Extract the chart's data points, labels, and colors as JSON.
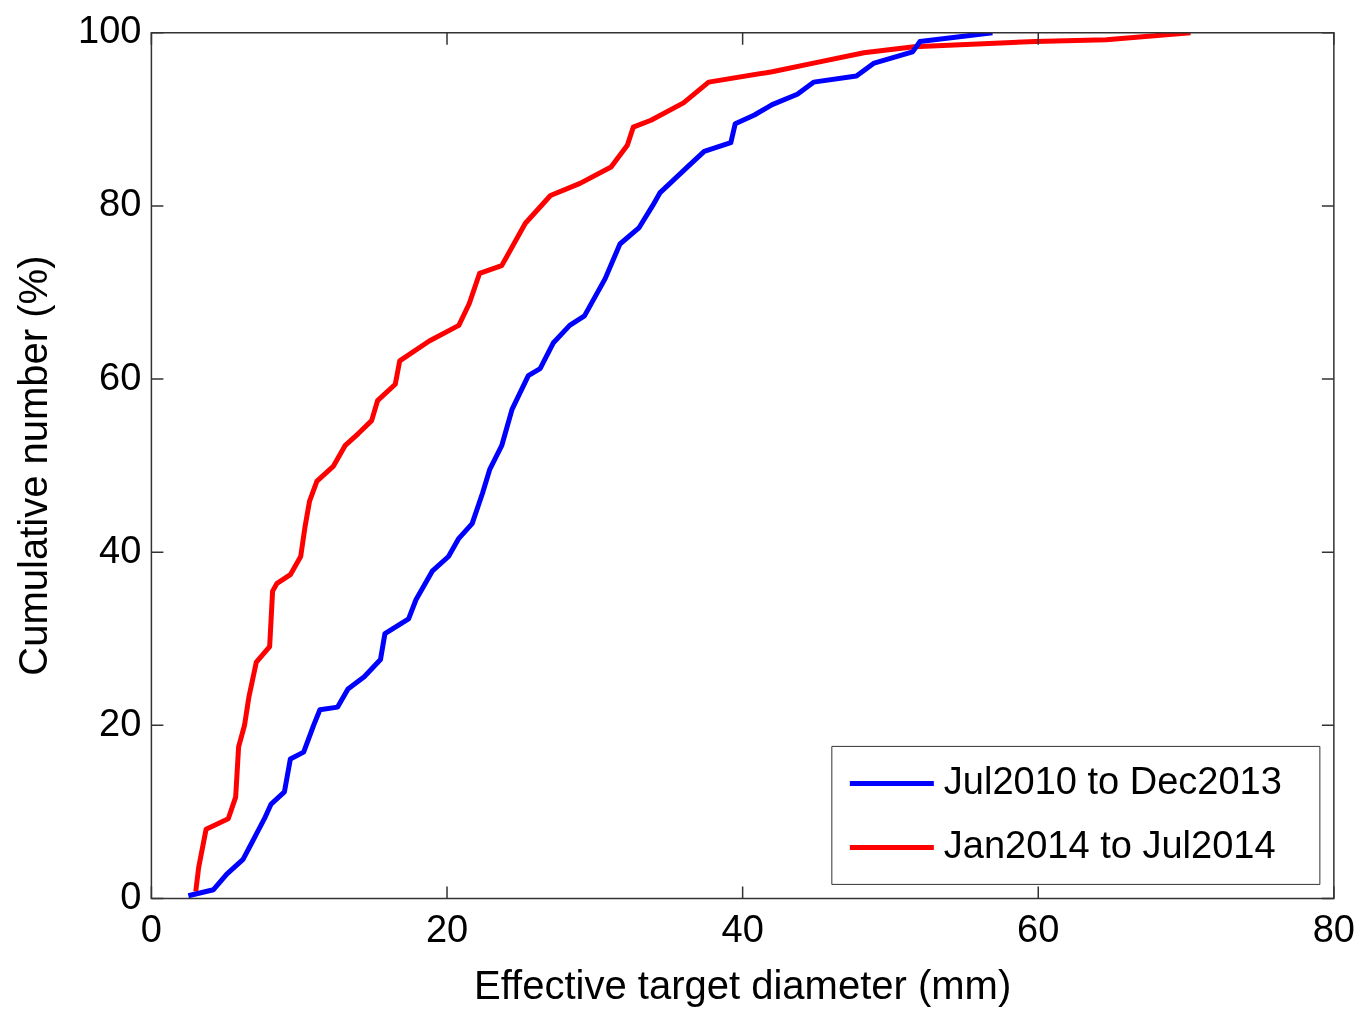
{
  "chart_data": {
    "type": "line",
    "xlabel": "Effective target diameter (mm)",
    "ylabel": "Cumulative number (%)",
    "xlim": [
      0,
      80
    ],
    "xticks": [
      0,
      20,
      40,
      60,
      80
    ],
    "ylim": [
      0,
      100
    ],
    "yticks": [
      0,
      20,
      40,
      60,
      80,
      100
    ],
    "grid": false,
    "legend": "bottom right",
    "marker": "none",
    "line_style": "solid",
    "series": [
      {
        "name": "Jul2010 to Dec2013",
        "color": "#0000ff",
        "x": [
          2.5,
          4.2,
          5.1,
          6.2,
          7.0,
          7.7,
          8.1,
          9.0,
          9.4,
          10.3,
          11.0,
          11.4,
          12.6,
          13.3,
          14.4,
          15.5,
          15.8,
          17.4,
          17.9,
          19.0,
          20.1,
          20.8,
          21.7,
          22.4,
          22.9,
          23.7,
          24.4,
          25.5,
          26.3,
          27.2,
          28.3,
          29.3,
          30.7,
          31.7,
          33.0,
          33.9,
          34.4,
          36.2,
          37.4,
          39.2,
          39.5,
          40.8,
          42.0,
          43.7,
          44.8,
          47.7,
          48.9,
          51.5,
          52.0,
          56.9
        ],
        "values": [
          0.3,
          1.0,
          2.8,
          4.5,
          7.1,
          9.4,
          10.9,
          12.3,
          16.1,
          16.9,
          20.1,
          21.8,
          22.1,
          24.2,
          25.6,
          27.6,
          30.6,
          32.3,
          34.5,
          37.8,
          39.5,
          41.6,
          43.3,
          46.8,
          49.6,
          52.3,
          56.5,
          60.4,
          61.2,
          64.2,
          66.2,
          67.3,
          71.6,
          75.6,
          77.5,
          80.0,
          81.5,
          84.4,
          86.3,
          87.3,
          89.5,
          90.5,
          91.7,
          92.9,
          94.3,
          95.0,
          96.5,
          97.8,
          99.0,
          100
        ]
      },
      {
        "name": "Jan2014 to Jul2014",
        "color": "#ff0000",
        "x": [
          3.0,
          3.2,
          3.7,
          5.2,
          5.7,
          5.9,
          6.3,
          6.6,
          7.1,
          8.0,
          8.2,
          8.5,
          9.4,
          10.1,
          10.4,
          10.7,
          11.2,
          12.3,
          13.1,
          14.0,
          14.9,
          15.3,
          16.5,
          16.8,
          18.8,
          20.8,
          21.5,
          22.2,
          23.7,
          25.3,
          27.0,
          29.0,
          31.1,
          32.2,
          32.6,
          33.8,
          36.0,
          37.7,
          42.0,
          44.8,
          48.2,
          51.6,
          59.8,
          64.6,
          70.3
        ],
        "values": [
          0.8,
          3.6,
          8.0,
          9.2,
          11.7,
          17.5,
          20.0,
          23.3,
          27.3,
          29.1,
          35.5,
          36.4,
          37.4,
          39.5,
          43.0,
          45.9,
          48.2,
          49.9,
          52.3,
          53.7,
          55.2,
          57.5,
          59.4,
          62.1,
          64.4,
          66.2,
          68.7,
          72.2,
          73.1,
          78.0,
          81.2,
          82.6,
          84.5,
          87.0,
          89.1,
          89.9,
          91.9,
          94.3,
          95.5,
          96.5,
          97.7,
          98.4,
          99.0,
          99.2,
          100
        ]
      }
    ]
  }
}
